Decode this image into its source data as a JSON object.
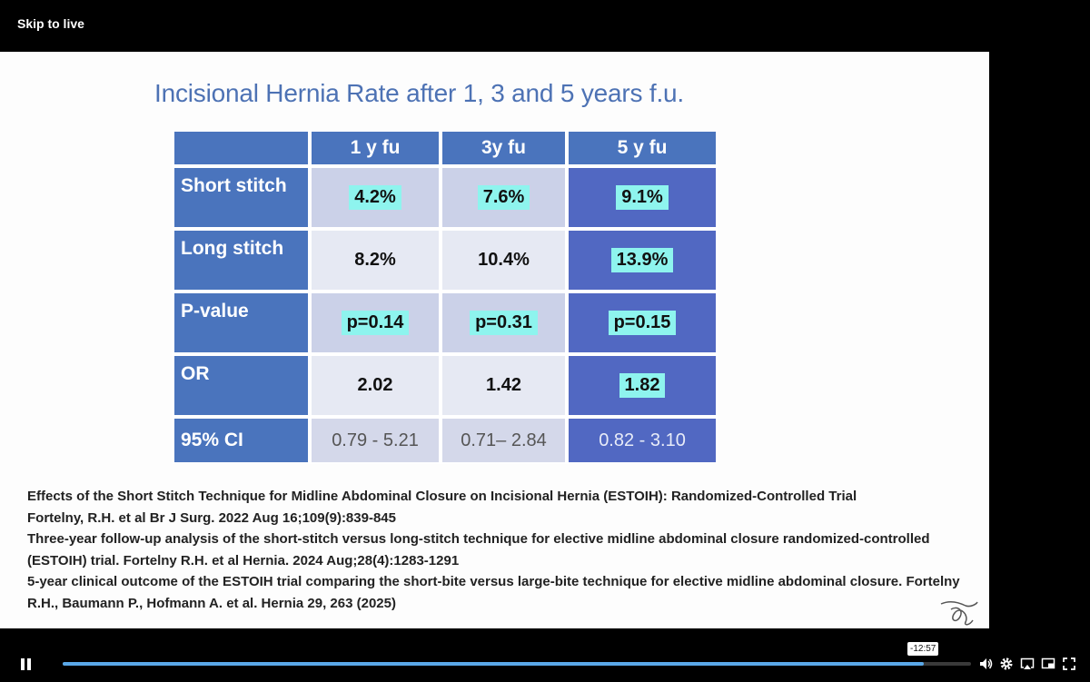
{
  "player": {
    "skip_label": "Skip to live",
    "time_remaining": "-12:57",
    "progress": 0.948
  },
  "slide": {
    "title": "Incisional Hernia Rate after 1, 3 and 5 years f.u.",
    "table": {
      "columns": [
        "1 y fu",
        "3y fu",
        "5 y fu"
      ],
      "rows": [
        {
          "label": "Short stitch",
          "values": [
            "4.2%",
            "7.6%",
            "9.1%"
          ]
        },
        {
          "label": "Long stitch",
          "values": [
            "8.2%",
            "10.4%",
            "13.9%"
          ]
        },
        {
          "label": "P-value",
          "values": [
            "p=0.14",
            "p=0.31",
            "p=0.15"
          ]
        },
        {
          "label": "OR",
          "values": [
            "2.02",
            "1.42",
            "1.82"
          ]
        },
        {
          "label": "95% CI",
          "values": [
            "0.79 - 5.21",
            "0.71– 2.84",
            "0.82 - 3.10"
          ]
        }
      ]
    },
    "references": [
      "Effects of the Short Stitch Technique for Midline Abdominal Closure on Incisional Hernia (ESTOIH): Randomized-Controlled Trial",
      "Fortelny, R.H. et al Br J Surg. 2022 Aug 16;109(9):839-845",
      "Three-year follow-up analysis of the short-stitch versus long-stitch technique for elective midline abdominal closure randomized-controlled (ESTOIH) trial. Fortelny R.H. et al Hernia. 2024 Aug;28(4):1283-1291",
      "5-year clinical outcome of the ESTOIH trial comparing the short-bite versus large-bite technique for elective midline abdominal closure. Fortelny R.H., Baumann P., Hofmann A. et al. Hernia 29, 263 (2025)"
    ]
  },
  "icons": [
    "pause-icon",
    "volume-icon",
    "settings-icon",
    "airplay-icon",
    "picture-in-picture-icon",
    "fullscreen-icon"
  ],
  "colors": {
    "accent": "#4a74bd",
    "highlight": "#8ef4ee",
    "progress": "#5aa8e8"
  }
}
